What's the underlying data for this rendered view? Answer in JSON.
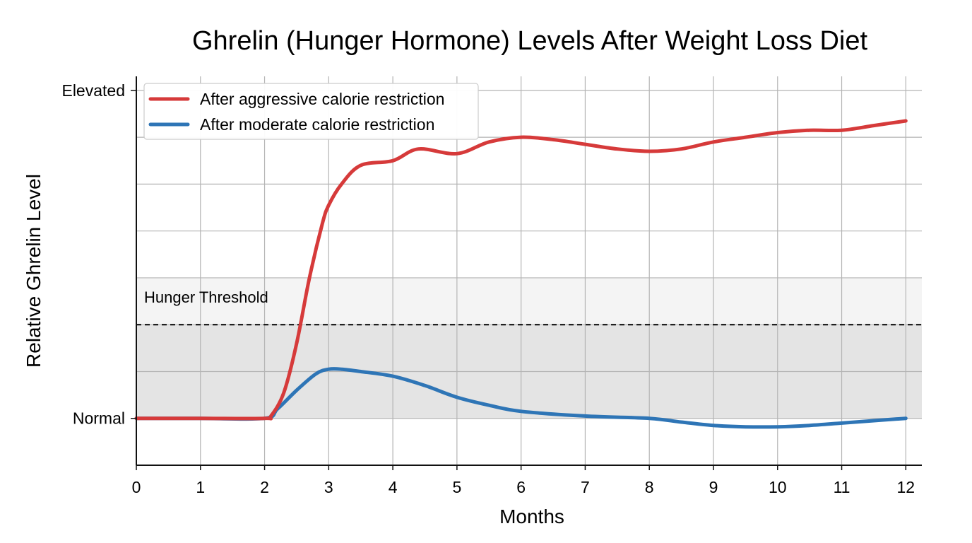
{
  "chart_data": {
    "type": "line",
    "title": "Ghrelin (Hunger Hormone) Levels After Weight Loss Diet",
    "xlabel": "Months",
    "ylabel": "Relative Ghrelin Level",
    "xlim": [
      0,
      12.25
    ],
    "ylim": [
      -1.0,
      7.3
    ],
    "x_ticks": [
      0,
      1,
      2,
      3,
      4,
      5,
      6,
      7,
      8,
      9,
      10,
      11,
      12
    ],
    "y_ticks": [
      {
        "value": 0,
        "label": "Normal"
      },
      {
        "value": 7,
        "label": "Elevated"
      }
    ],
    "grid": true,
    "legend": "top-left",
    "threshold": {
      "label": "Hunger Threshold",
      "value": 2.0,
      "color": "#111111",
      "style": "dashed"
    },
    "band": {
      "from": 0,
      "to": 3.0
    },
    "series": [
      {
        "name": "After aggressive calorie restriction",
        "color": "#d63a3a",
        "x": [
          0,
          1,
          2,
          2.1,
          2.3,
          2.5,
          2.7,
          2.9,
          3,
          3.2,
          3.5,
          4,
          4.4,
          5,
          5.5,
          6,
          6.5,
          7,
          7.5,
          8,
          8.5,
          9,
          9.5,
          10,
          10.5,
          11,
          11.5,
          12
        ],
        "y": [
          0,
          0,
          0,
          0.05,
          0.55,
          1.6,
          3.0,
          4.15,
          4.55,
          5.0,
          5.4,
          5.5,
          5.75,
          5.65,
          5.9,
          6.0,
          5.95,
          5.85,
          5.75,
          5.7,
          5.75,
          5.9,
          6.0,
          6.1,
          6.15,
          6.15,
          6.25,
          6.35
        ]
      },
      {
        "name": "After moderate calorie restriction",
        "color": "#2e75b6",
        "x": [
          0,
          1,
          2,
          2.2,
          2.5,
          2.8,
          3,
          3.2,
          3.5,
          4,
          4.5,
          5,
          5.5,
          6,
          7,
          8,
          8.5,
          9,
          9.5,
          10,
          10.5,
          11,
          11.5,
          12
        ],
        "y": [
          0,
          0,
          0,
          0.2,
          0.6,
          0.95,
          1.05,
          1.05,
          1.0,
          0.9,
          0.7,
          0.45,
          0.28,
          0.15,
          0.05,
          0.0,
          -0.08,
          -0.15,
          -0.18,
          -0.18,
          -0.15,
          -0.1,
          -0.05,
          0.0
        ]
      }
    ]
  }
}
